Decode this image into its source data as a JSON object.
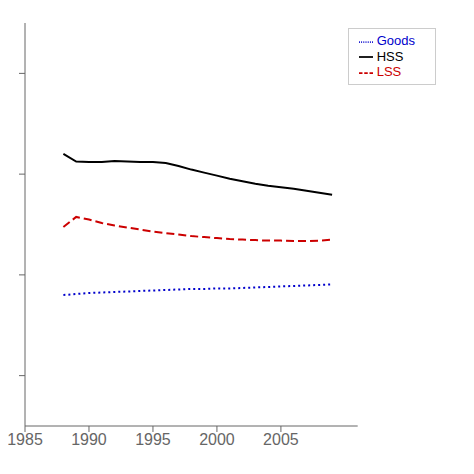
{
  "chart_data": {
    "type": "line",
    "x": [
      1988,
      1989,
      1990,
      1991,
      1992,
      1993,
      1994,
      1995,
      1996,
      1997,
      1998,
      1999,
      2000,
      2001,
      2002,
      2003,
      2004,
      2005,
      2006,
      2007,
      2008,
      2009
    ],
    "series": [
      {
        "name": "Goods",
        "color": "#0000cc",
        "line_style": "dotted",
        "values": [
          0.56,
          0.562,
          0.564,
          0.565,
          0.566,
          0.567,
          0.568,
          0.569,
          0.57,
          0.571,
          0.572,
          0.572,
          0.573,
          0.573,
          0.574,
          0.575,
          0.576,
          0.577,
          0.578,
          0.579,
          0.58,
          0.581
        ]
      },
      {
        "name": "LSS",
        "color": "#cc0000",
        "line_style": "dashed",
        "values": [
          0.695,
          0.715,
          0.71,
          0.703,
          0.698,
          0.694,
          0.69,
          0.686,
          0.683,
          0.68,
          0.677,
          0.675,
          0.673,
          0.671,
          0.67,
          0.669,
          0.668,
          0.668,
          0.667,
          0.667,
          0.668,
          0.67
        ]
      },
      {
        "name": "HSS",
        "color": "#000000",
        "line_style": "solid",
        "values": [
          0.84,
          0.825,
          0.824,
          0.824,
          0.826,
          0.825,
          0.824,
          0.824,
          0.822,
          0.816,
          0.809,
          0.803,
          0.797,
          0.791,
          0.786,
          0.781,
          0.777,
          0.774,
          0.771,
          0.767,
          0.763,
          0.759
        ]
      }
    ],
    "xlim": [
      1985,
      2011
    ],
    "xticks": [
      1985,
      1990,
      1995,
      2000,
      2005
    ],
    "ylim": [
      0.3,
      1.1
    ],
    "yticks": [
      0.4,
      0.6,
      0.8,
      1.0
    ],
    "tick_labels": "x",
    "grid": false,
    "legend": "upper right"
  }
}
